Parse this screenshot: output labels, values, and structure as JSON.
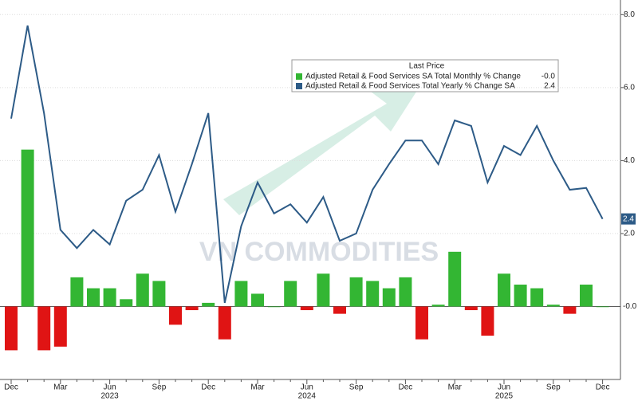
{
  "chart_data": {
    "type": "bar_line",
    "legend_title": "Last Price",
    "watermark": "VN COMMODITIES",
    "categories": [
      "Dec",
      null,
      null,
      "Mar",
      null,
      null,
      "Jun",
      null,
      null,
      "Sep",
      null,
      null,
      "Dec",
      null,
      null,
      "Mar",
      null,
      null,
      "Jun",
      null,
      null,
      "Sep",
      null,
      null,
      "Dec",
      null,
      null,
      "Mar",
      null,
      null,
      "Jun",
      null,
      null,
      "Sep",
      null,
      null,
      "Dec"
    ],
    "year_labels": [
      "2023",
      "2024",
      "2025"
    ],
    "series": [
      {
        "name": "Adjusted Retail & Food Services SA Total Monthly % Change",
        "type": "bar",
        "color": "#33b633",
        "negative_color": "#e01414",
        "last_label": "-0.0",
        "values": [
          -1.2,
          4.3,
          -1.2,
          -1.1,
          0.8,
          0.5,
          0.5,
          0.2,
          0.9,
          0.7,
          -0.5,
          -0.1,
          0.1,
          -0.9,
          0.7,
          0.35,
          0.0,
          0.7,
          -0.1,
          0.9,
          -0.2,
          0.8,
          0.7,
          0.5,
          0.8,
          -0.9,
          0.05,
          1.5,
          -0.1,
          -0.8,
          0.9,
          0.6,
          0.5,
          0.05,
          -0.2,
          0.6,
          0.0
        ]
      },
      {
        "name": "Adjusted Retail & Food Services Total Yearly % Change SA",
        "type": "line",
        "color": "#2d5b87",
        "last_label": "2.4",
        "values": [
          5.15,
          7.7,
          5.3,
          2.1,
          1.6,
          2.1,
          1.7,
          2.9,
          3.2,
          4.15,
          2.6,
          3.9,
          5.3,
          0.1,
          2.2,
          3.4,
          2.55,
          2.8,
          2.3,
          3.0,
          1.8,
          2.0,
          3.2,
          3.9,
          4.55,
          4.55,
          3.9,
          5.1,
          4.95,
          3.4,
          4.4,
          4.15,
          4.95,
          4.0,
          3.2,
          3.25,
          2.4
        ]
      }
    ],
    "ylim": [
      -2,
      8.4
    ],
    "yticks": [
      {
        "value": 2,
        "label": "2.0"
      },
      {
        "value": 4,
        "label": "4.0"
      },
      {
        "value": 6,
        "label": "6.0"
      },
      {
        "value": 8,
        "label": "8.0"
      }
    ],
    "grid": true
  }
}
